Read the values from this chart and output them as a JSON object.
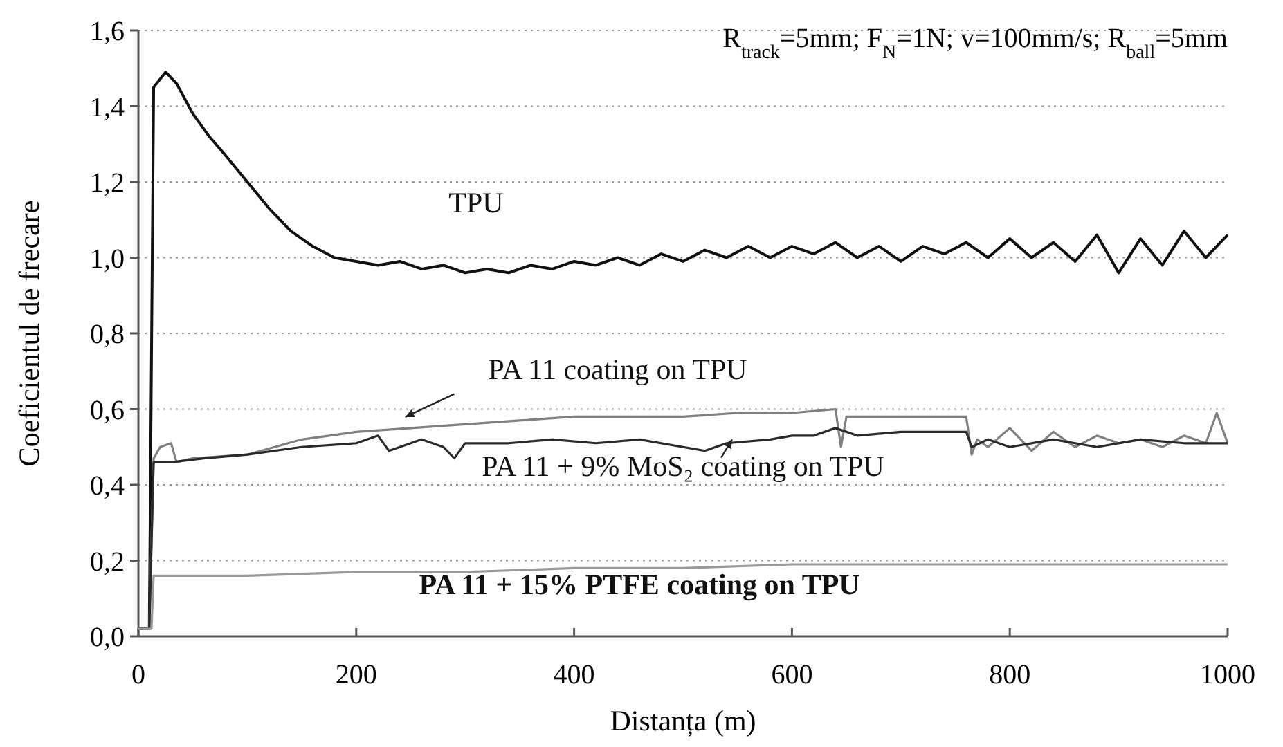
{
  "chart_data": {
    "type": "line",
    "xlabel": "Distanța (m)",
    "ylabel": "Coeficientul de frecare",
    "annotations": [
      "R$_{track}$=5mm; F$_{N}$=1N; v=100mm/s; R$_{ball}$=5mm"
    ],
    "xlim": [
      0,
      1000
    ],
    "xticks": [
      0,
      200,
      400,
      600,
      800,
      1000
    ],
    "ylim": [
      0,
      1.6
    ],
    "yticks": [
      {
        "value": 0,
        "label": "0,0"
      },
      {
        "value": 0.2,
        "label": "0,2"
      },
      {
        "value": 0.4,
        "label": "0,4"
      },
      {
        "value": 0.6,
        "label": "0,6"
      },
      {
        "value": 0.8,
        "label": "0,8"
      },
      {
        "value": 1,
        "label": "1,0"
      },
      {
        "value": 1.2,
        "label": "1,2"
      },
      {
        "value": 1.4,
        "label": "1,4"
      },
      {
        "value": 1.6,
        "label": "1,6"
      }
    ],
    "grid": "y",
    "line_style": "solid",
    "marker": "none",
    "series": [
      {
        "name": "TPU",
        "color": "#111111",
        "x": [
          0,
          10,
          14,
          25,
          35,
          50,
          65,
          80,
          100,
          120,
          140,
          160,
          180,
          200,
          220,
          240,
          260,
          280,
          300,
          320,
          340,
          360,
          380,
          400,
          420,
          440,
          460,
          480,
          500,
          520,
          540,
          560,
          580,
          600,
          620,
          640,
          660,
          680,
          700,
          720,
          740,
          760,
          780,
          800,
          820,
          840,
          860,
          880,
          900,
          920,
          940,
          960,
          980,
          1000
        ],
        "values": [
          0.02,
          0.02,
          1.45,
          1.49,
          1.46,
          1.38,
          1.32,
          1.27,
          1.2,
          1.13,
          1.07,
          1.03,
          1.0,
          0.99,
          0.98,
          0.99,
          0.97,
          0.98,
          0.96,
          0.97,
          0.96,
          0.98,
          0.97,
          0.99,
          0.98,
          1.0,
          0.98,
          1.01,
          0.99,
          1.02,
          1.0,
          1.03,
          1.0,
          1.03,
          1.01,
          1.04,
          1.0,
          1.03,
          0.99,
          1.03,
          1.01,
          1.04,
          1.0,
          1.05,
          1.0,
          1.04,
          0.99,
          1.06,
          0.96,
          1.05,
          0.98,
          1.07,
          1.0,
          1.06
        ]
      },
      {
        "name": "PA 11 coating on TPU",
        "color": "#808080",
        "x": [
          0,
          10,
          14,
          20,
          30,
          35,
          50,
          100,
          150,
          200,
          250,
          300,
          350,
          400,
          450,
          500,
          550,
          600,
          640,
          645,
          650,
          700,
          760,
          765,
          770,
          780,
          800,
          820,
          840,
          860,
          880,
          900,
          920,
          940,
          960,
          980,
          990,
          1000
        ],
        "values": [
          0.02,
          0.02,
          0.47,
          0.5,
          0.51,
          0.46,
          0.47,
          0.48,
          0.52,
          0.54,
          0.55,
          0.56,
          0.57,
          0.58,
          0.58,
          0.58,
          0.59,
          0.59,
          0.6,
          0.5,
          0.58,
          0.58,
          0.58,
          0.48,
          0.52,
          0.5,
          0.55,
          0.49,
          0.54,
          0.5,
          0.53,
          0.51,
          0.52,
          0.5,
          0.53,
          0.51,
          0.59,
          0.51
        ]
      },
      {
        "name": "PA 11 + 9% MoS₂ coating on TPU",
        "color": "#2a2a2a",
        "x": [
          0,
          10,
          14,
          30,
          60,
          100,
          150,
          200,
          220,
          230,
          260,
          280,
          290,
          300,
          340,
          380,
          420,
          460,
          500,
          520,
          540,
          580,
          600,
          620,
          640,
          660,
          700,
          740,
          760,
          765,
          780,
          800,
          840,
          880,
          920,
          960,
          1000
        ],
        "values": [
          0.02,
          0.02,
          0.46,
          0.46,
          0.47,
          0.48,
          0.5,
          0.51,
          0.53,
          0.49,
          0.52,
          0.5,
          0.47,
          0.51,
          0.51,
          0.52,
          0.51,
          0.52,
          0.5,
          0.49,
          0.51,
          0.52,
          0.53,
          0.53,
          0.55,
          0.53,
          0.54,
          0.54,
          0.54,
          0.5,
          0.52,
          0.5,
          0.52,
          0.5,
          0.52,
          0.51,
          0.51
        ]
      },
      {
        "name": "PA 11 + 15% PTFE coating on TPU",
        "color": "#999999",
        "x": [
          0,
          12,
          14,
          20,
          100,
          200,
          300,
          400,
          500,
          600,
          700,
          800,
          900,
          1000
        ],
        "values": [
          0.02,
          0.02,
          0.16,
          0.16,
          0.16,
          0.17,
          0.17,
          0.18,
          0.18,
          0.19,
          0.19,
          0.19,
          0.19,
          0.19
        ]
      }
    ]
  }
}
